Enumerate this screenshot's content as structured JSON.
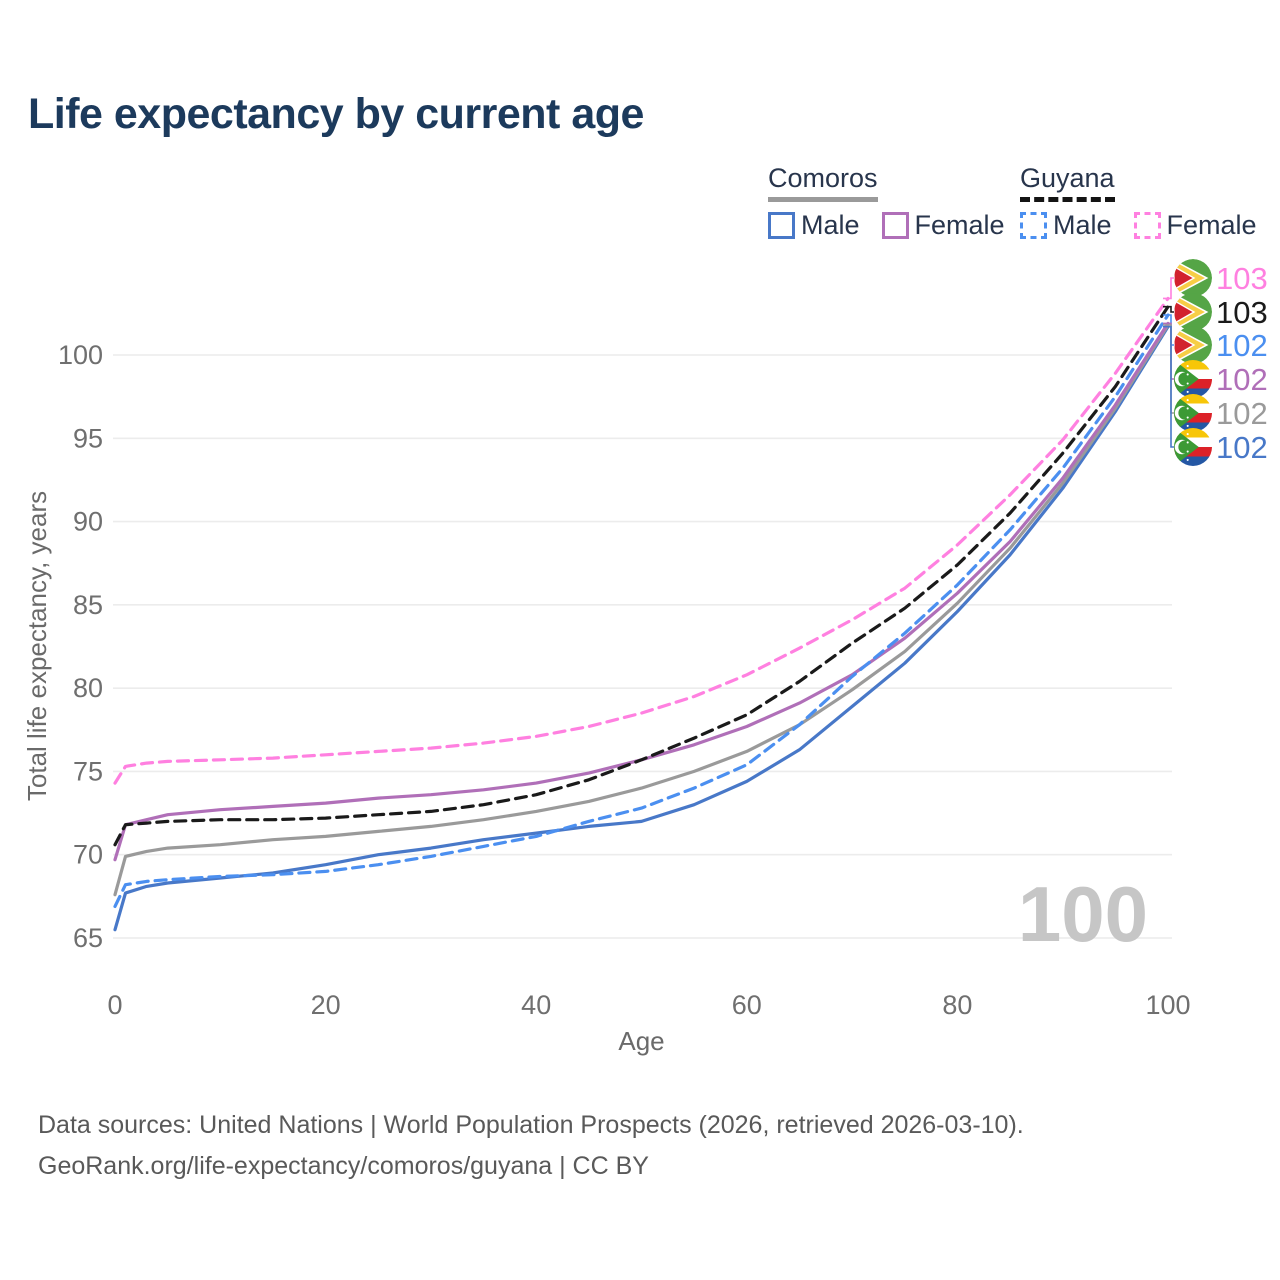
{
  "title": "Life expectancy by current age",
  "legend": {
    "groups": [
      {
        "name": "Comoros",
        "line_style": "solid",
        "underline_color": "#9a9a9a",
        "items": [
          {
            "label": "Male",
            "color": "#4878c8",
            "dashed": false
          },
          {
            "label": "Female",
            "color": "#b06fb8",
            "dashed": false
          }
        ]
      },
      {
        "name": "Guyana",
        "line_style": "dashed",
        "underline_color": "#141414",
        "items": [
          {
            "label": "Male",
            "color": "#4b8ff0",
            "dashed": true
          },
          {
            "label": "Female",
            "color": "#ff80e0",
            "dashed": true
          }
        ]
      }
    ]
  },
  "chart_data": {
    "type": "line",
    "title": "Life expectancy by current age",
    "xlabel": "Age",
    "ylabel": "Total life expectancy, years",
    "x_ticks": [
      0,
      20,
      40,
      60,
      80,
      100
    ],
    "y_ticks": [
      65,
      70,
      75,
      80,
      85,
      90,
      95,
      100
    ],
    "xlim": [
      0,
      100
    ],
    "ylim": [
      65,
      103.5
    ],
    "grid": "horizontal",
    "legend_position": "top-right",
    "watermark": "100",
    "x": [
      0,
      1,
      3,
      5,
      10,
      15,
      20,
      25,
      30,
      35,
      40,
      45,
      50,
      55,
      60,
      65,
      70,
      75,
      80,
      85,
      90,
      95,
      100
    ],
    "series": [
      {
        "name": "Guyana Female",
        "country": "Guyana",
        "sex": "Female",
        "color": "#ff80e0",
        "dashed": true,
        "end_label": "103",
        "values": [
          74.3,
          75.3,
          75.5,
          75.6,
          75.7,
          75.8,
          76.0,
          76.2,
          76.4,
          76.7,
          77.1,
          77.7,
          78.5,
          79.5,
          80.8,
          82.4,
          84.1,
          86.0,
          88.6,
          91.6,
          94.9,
          98.9,
          103.4
        ]
      },
      {
        "name": "Guyana Total",
        "country": "Guyana",
        "sex": "Both",
        "color": "#1a1a1a",
        "dashed": true,
        "end_label": "103",
        "values": [
          70.6,
          71.8,
          71.9,
          72.0,
          72.1,
          72.1,
          72.2,
          72.4,
          72.6,
          73.0,
          73.6,
          74.5,
          75.7,
          77.0,
          78.4,
          80.4,
          82.7,
          84.8,
          87.4,
          90.5,
          94.1,
          98.1,
          102.9
        ]
      },
      {
        "name": "Guyana Male",
        "country": "Guyana",
        "sex": "Male",
        "color": "#4b8ff0",
        "dashed": true,
        "end_label": "102",
        "values": [
          66.9,
          68.2,
          68.4,
          68.5,
          68.7,
          68.8,
          69.0,
          69.4,
          69.9,
          70.5,
          71.1,
          72.0,
          72.8,
          74.0,
          75.4,
          77.8,
          80.7,
          83.3,
          86.2,
          89.5,
          93.2,
          97.5,
          102.4
        ]
      },
      {
        "name": "Comoros Female",
        "country": "Comoros",
        "sex": "Female",
        "color": "#b06fb8",
        "dashed": false,
        "end_label": "102",
        "values": [
          69.7,
          71.8,
          72.1,
          72.4,
          72.7,
          72.9,
          73.1,
          73.4,
          73.6,
          73.9,
          74.3,
          74.9,
          75.7,
          76.6,
          77.7,
          79.1,
          80.8,
          83.0,
          85.7,
          88.8,
          92.6,
          97.0,
          101.9
        ]
      },
      {
        "name": "Comoros Total",
        "country": "Comoros",
        "sex": "Both",
        "color": "#9a9a9a",
        "dashed": false,
        "end_label": "102",
        "values": [
          67.6,
          69.9,
          70.2,
          70.4,
          70.6,
          70.9,
          71.1,
          71.4,
          71.7,
          72.1,
          72.6,
          73.2,
          74.0,
          75.0,
          76.2,
          77.8,
          79.9,
          82.2,
          85.1,
          88.4,
          92.3,
          96.8,
          101.8
        ]
      },
      {
        "name": "Comoros Male",
        "country": "Comoros",
        "sex": "Male",
        "color": "#4878c8",
        "dashed": false,
        "end_label": "102",
        "values": [
          65.5,
          67.7,
          68.1,
          68.3,
          68.6,
          68.9,
          69.4,
          70.0,
          70.4,
          70.9,
          71.3,
          71.7,
          72.0,
          73.0,
          74.4,
          76.3,
          78.9,
          81.5,
          84.6,
          88.0,
          92.0,
          96.6,
          101.7
        ]
      }
    ]
  },
  "footer": {
    "line1": "Data sources: United Nations | World Population Prospects (2026, retrieved 2026-03-10).",
    "line2": "GeoRank.org/life-expectancy/comoros/guyana | CC BY"
  }
}
